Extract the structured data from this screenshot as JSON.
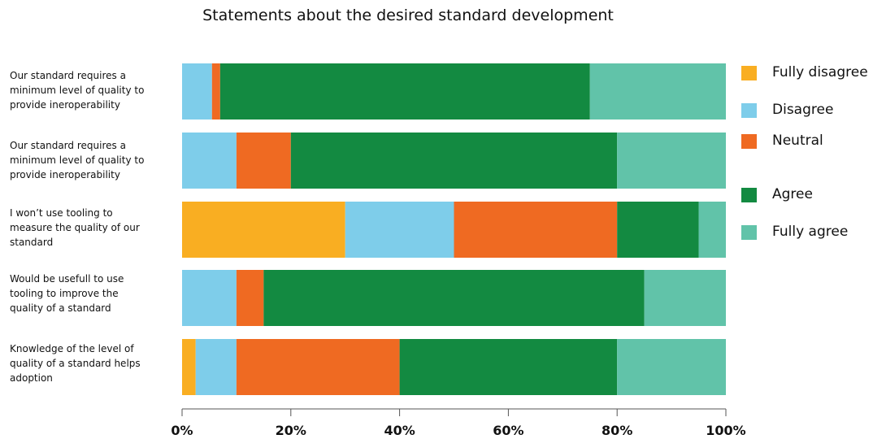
{
  "chart_data": {
    "type": "bar",
    "orientation": "horizontal",
    "stacked": true,
    "percent": true,
    "title": "Statements about the desired standard development",
    "xlabel": "",
    "ylabel": "",
    "xlim": [
      0,
      100
    ],
    "grid": false,
    "legend_position": "right",
    "categories": [
      "Our standard requires a minimum level of quality to provide ineroperability",
      "Our standard requires a minimum level of quality to provide ineroperability",
      "I won’t use tooling to measure the quality of our standard",
      "Would be usefull to use tooling to improve the quality of a standard",
      "Knowledge of the level of quality of a standard helps adoption"
    ],
    "category_lines": [
      [
        "Our standard requires a",
        "minimum level of quality to",
        "provide ineroperability"
      ],
      [
        "Our standard requires a",
        "minimum level of quality to",
        "provide ineroperability"
      ],
      [
        "I won’t use tooling to",
        "measure the quality of our",
        "standard"
      ],
      [
        "Would be usefull to use",
        "tooling to improve the",
        "quality of a standard"
      ],
      [
        "Knowledge of the level of",
        "quality of a standard helps",
        "adoption"
      ]
    ],
    "series": [
      {
        "name": "Fully disagree",
        "color": "#F9AE22",
        "values": [
          0,
          0,
          30,
          0,
          2.5
        ]
      },
      {
        "name": "Disagree",
        "color": "#7ECDEA",
        "values": [
          5.5,
          10,
          20,
          10,
          7.5
        ]
      },
      {
        "name": "Neutral",
        "color": "#EF6A22",
        "values": [
          1.5,
          10,
          30,
          5,
          30
        ]
      },
      {
        "name": "Agree",
        "color": "#138A41",
        "values": [
          68,
          60,
          15,
          70,
          40
        ]
      },
      {
        "name": "Fully agree",
        "color": "#61C3A9",
        "values": [
          25,
          20,
          5,
          15,
          20
        ]
      }
    ],
    "x_ticks": [
      "0%",
      "20%",
      "40%",
      "60%",
      "80%",
      "100%"
    ]
  }
}
